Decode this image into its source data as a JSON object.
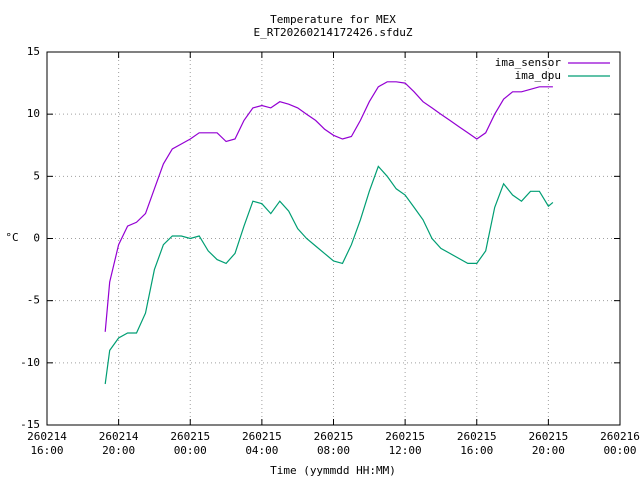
{
  "chart_data": {
    "type": "line",
    "title": "Temperature for MEX",
    "subtitle": "E_RT20260214172426.sfduZ",
    "x_label": "Time (yymmdd HH:MM)",
    "y_label": "°C",
    "x": [
      "260214 19:15",
      "260214 19:30",
      "260214 20:00",
      "260214 20:30",
      "260214 21:00",
      "260214 21:30",
      "260214 22:00",
      "260214 22:30",
      "260214 23:00",
      "260214 23:30",
      "260215 00:00",
      "260215 00:30",
      "260215 01:00",
      "260215 01:30",
      "260215 02:00",
      "260215 02:30",
      "260215 03:00",
      "260215 03:30",
      "260215 04:00",
      "260215 04:30",
      "260215 05:00",
      "260215 05:30",
      "260215 06:00",
      "260215 06:30",
      "260215 07:00",
      "260215 07:30",
      "260215 08:00",
      "260215 08:30",
      "260215 09:00",
      "260215 09:30",
      "260215 10:00",
      "260215 10:30",
      "260215 11:00",
      "260215 11:30",
      "260215 12:00",
      "260215 12:30",
      "260215 13:00",
      "260215 13:30",
      "260215 14:00",
      "260215 14:30",
      "260215 15:00",
      "260215 15:30",
      "260215 16:00",
      "260215 16:30",
      "260215 17:00",
      "260215 17:30",
      "260215 18:00",
      "260215 18:30",
      "260215 19:00",
      "260215 19:30",
      "260215 20:00",
      "260215 20:15"
    ],
    "series": [
      {
        "name": "ima_sensor",
        "color": "#9400d3",
        "values": [
          -7.5,
          -3.5,
          -0.5,
          1,
          1.3,
          2,
          4,
          6,
          7.2,
          7.6,
          8,
          8.5,
          8.5,
          8.5,
          7.8,
          8,
          9.5,
          10.5,
          10.7,
          10.5,
          11,
          10.8,
          10.5,
          10,
          9.5,
          8.8,
          8.3,
          8,
          8.2,
          9.5,
          11,
          12.2,
          12.6,
          12.6,
          12.5,
          11.8,
          11,
          10.5,
          10,
          9.5,
          9,
          8.5,
          8,
          8.5,
          10,
          11.2,
          11.8,
          11.8,
          12,
          12.2,
          12.2,
          12.2
        ]
      },
      {
        "name": "ima_dpu",
        "color": "#009e73",
        "values": [
          -11.7,
          -9,
          -8,
          -7.6,
          -7.6,
          -6,
          -2.5,
          -0.5,
          0.2,
          0.2,
          0,
          0.2,
          -1,
          -1.7,
          -2,
          -1.2,
          1,
          3,
          2.8,
          2,
          3,
          2.2,
          0.8,
          0,
          -0.6,
          -1.2,
          -1.8,
          -2,
          -0.5,
          1.5,
          3.8,
          5.8,
          5,
          4,
          3.5,
          2.5,
          1.5,
          0,
          -0.8,
          -1.2,
          -1.6,
          -2,
          -2,
          -1,
          2.5,
          4.4,
          3.5,
          3,
          3.8,
          3.8,
          2.6,
          2.9
        ]
      }
    ],
    "xlim": [
      "260214 16:00",
      "260216 00:00"
    ],
    "xticks": [
      "260214 16:00",
      "260214 20:00",
      "260215 00:00",
      "260215 04:00",
      "260215 08:00",
      "260215 12:00",
      "260215 16:00",
      "260215 20:00",
      "260216 00:00"
    ],
    "ylim": [
      -15,
      15
    ],
    "yticks": [
      -15,
      -10,
      -5,
      0,
      5,
      10,
      15
    ],
    "grid": true,
    "legend": "top-right"
  }
}
